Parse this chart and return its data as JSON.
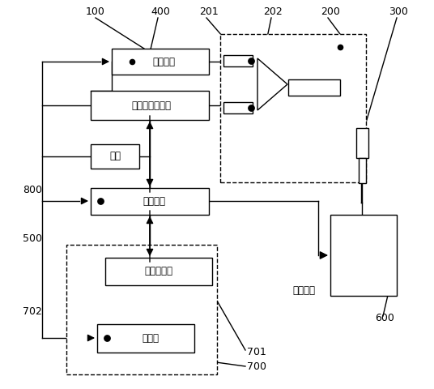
{
  "bg_color": "#ffffff",
  "line_color": "#000000",
  "labels": {
    "guangyuan": "光源组件",
    "houfenguang": "后分光光学系统",
    "dianyuan": "电源",
    "kongzhi": "控制系统",
    "yejing": "液晶触摸屏",
    "dayinji": "打印机",
    "yangben": "样本溶液"
  },
  "numbers": {
    "n100": "100",
    "n400": "400",
    "n201": "201",
    "n202": "202",
    "n200": "200",
    "n300": "300",
    "n800": "800",
    "n500": "500",
    "n702": "702",
    "n701": "701",
    "n700": "700",
    "n600": "600"
  }
}
